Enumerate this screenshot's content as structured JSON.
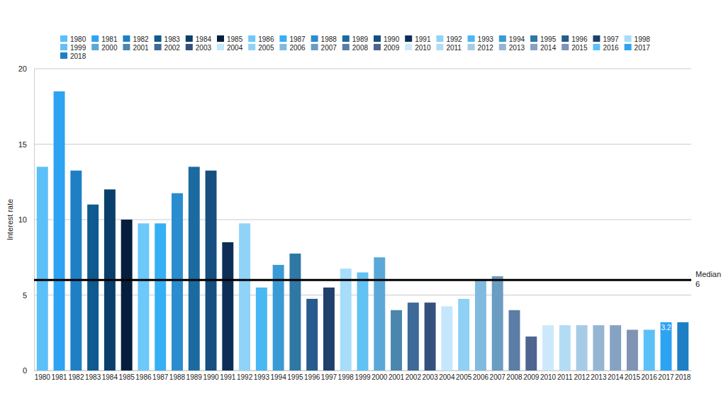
{
  "chart_data": {
    "type": "bar",
    "y_label": "Interest rate",
    "categories": [
      "1980",
      "1981",
      "1982",
      "1983",
      "1984",
      "1985",
      "1986",
      "1987",
      "1988",
      "1989",
      "1990",
      "1991",
      "1992",
      "1993",
      "1994",
      "1995",
      "1996",
      "1997",
      "1998",
      "1999",
      "2000",
      "2001",
      "2002",
      "2003",
      "2004",
      "2005",
      "2006",
      "2007",
      "2008",
      "2009",
      "2010",
      "2011",
      "2012",
      "2013",
      "2014",
      "2015",
      "2016",
      "2017",
      "2018"
    ],
    "values": [
      13.5,
      18.5,
      13.25,
      11,
      12,
      10,
      9.75,
      9.75,
      11.75,
      13.5,
      13.25,
      8.5,
      9.75,
      5.5,
      7,
      7.75,
      4.75,
      5.5,
      6.75,
      6.5,
      7.5,
      4,
      4.5,
      4.5,
      4.25,
      4.75,
      6,
      6.25,
      4,
      2.25,
      3,
      3,
      3,
      3,
      3,
      2.7,
      2.7,
      3.2,
      3.2
    ],
    "value_labels": [
      null,
      null,
      null,
      null,
      null,
      null,
      null,
      null,
      null,
      null,
      null,
      null,
      null,
      null,
      null,
      null,
      null,
      null,
      null,
      null,
      null,
      null,
      null,
      null,
      null,
      null,
      null,
      null,
      null,
      null,
      null,
      null,
      null,
      null,
      null,
      null,
      null,
      "3.2",
      null
    ],
    "colors": [
      "#5bc0f8",
      "#2ea3f2",
      "#1f7fc4",
      "#0f5a8e",
      "#0b3f6b",
      "#061e3e",
      "#6cc9f9",
      "#36aff5",
      "#2a8dcf",
      "#1b6aa0",
      "#164f80",
      "#0d2f57",
      "#8fd3f9",
      "#48b8f4",
      "#3a9ad6",
      "#2f77a5",
      "#285b8e",
      "#1f3f6d",
      "#a6ddfa",
      "#62c2f3",
      "#5aa8d8",
      "#4a86ad",
      "#3d6a98",
      "#34517e",
      "#c4e7fb",
      "#8ed1f5",
      "#80bbdf",
      "#6b9cc2",
      "#5b7da6",
      "#4e6590",
      "#cce9fb",
      "#b3dcf4",
      "#a6cbe6",
      "#95b5d1",
      "#86a2c3",
      "#7f93b5",
      "#5bc0f8",
      "#2ea3f2",
      "#1f7fc4"
    ],
    "median": {
      "label": "Median",
      "value": 6
    },
    "ylim": [
      0,
      20
    ],
    "yticks": [
      0,
      5,
      10,
      15,
      20
    ],
    "grid": true,
    "legend": "top",
    "data_labels": true
  }
}
